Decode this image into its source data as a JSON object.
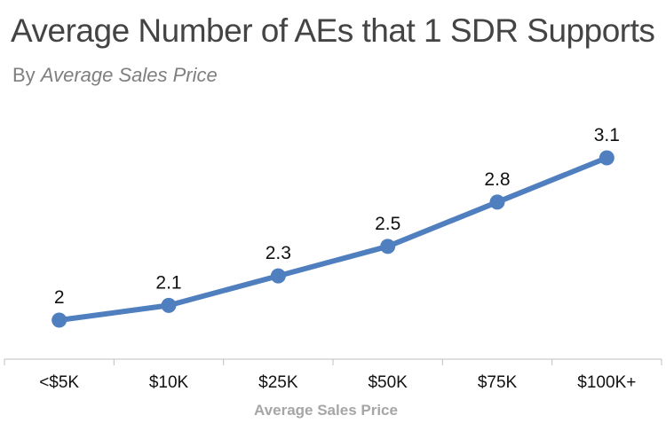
{
  "title": "Average Number of AEs that 1 SDR Supports",
  "subtitle_prefix": "By",
  "subtitle_emphasis": "Average Sales Price",
  "chart_data": {
    "type": "line",
    "title": "Average Number of AEs that 1 SDR Supports",
    "subtitle": "By Average Sales Price",
    "xlabel": "Average  Sales  Price",
    "ylabel": "",
    "categories": [
      "<$5K",
      "$10K",
      "$25K",
      "$50K",
      "$75K",
      "$100K+"
    ],
    "values": [
      2,
      2.1,
      2.3,
      2.5,
      2.8,
      3.1
    ],
    "data_labels": [
      "2",
      "2.1",
      "2.3",
      "2.5",
      "2.8",
      "3.1"
    ],
    "grid": false,
    "line_color": "#4f7fbf",
    "axis_label_color": "#a6a6a6"
  }
}
